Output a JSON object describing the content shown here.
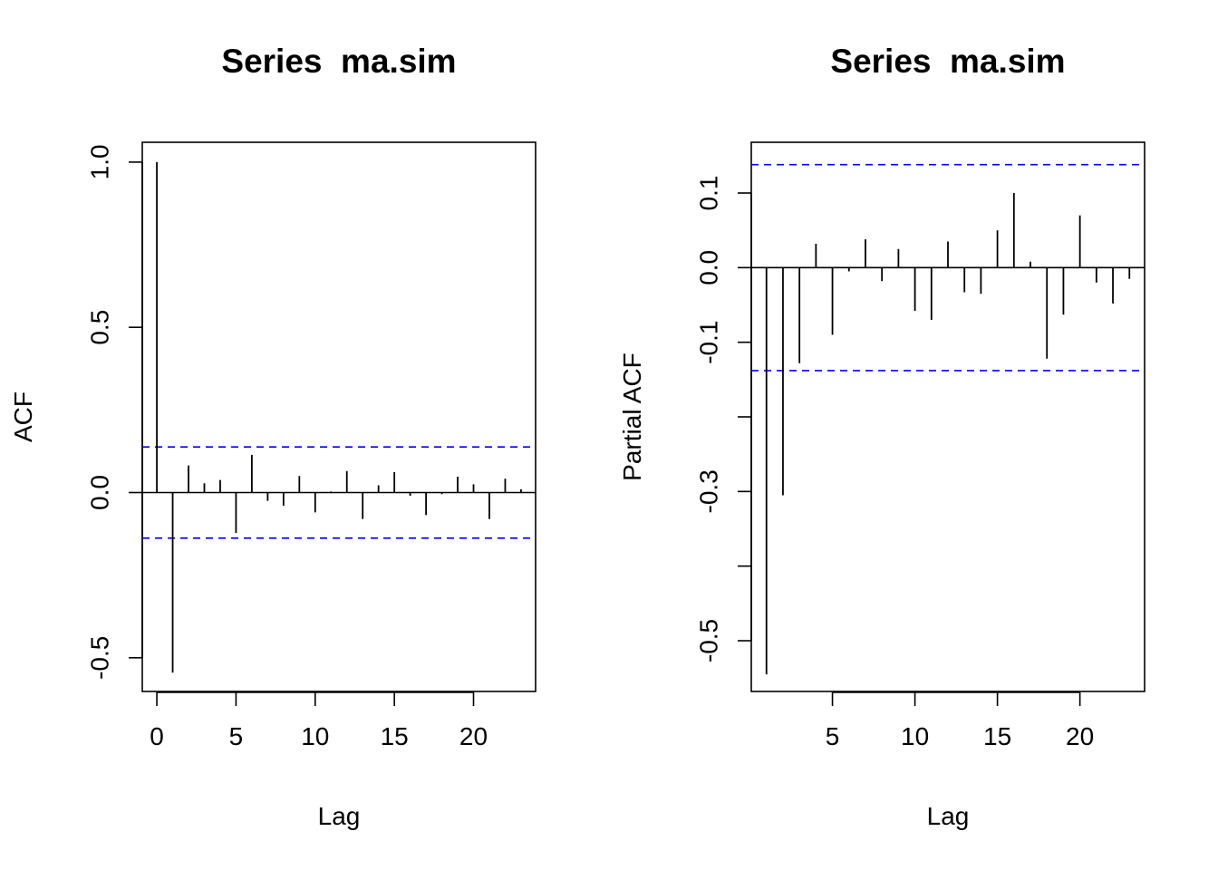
{
  "chart_data": [
    {
      "type": "bar",
      "title": "Series  ma.sim",
      "xlabel": "Lag",
      "ylabel": "ACF",
      "xlim": [
        -0.92,
        23.92
      ],
      "ylim": [
        -0.602,
        1.06
      ],
      "xticks": [
        0,
        5,
        10,
        15,
        20
      ],
      "xtick_labels": [
        "0",
        "5",
        "10",
        "15",
        "20"
      ],
      "yticks": [
        -0.5,
        0.0,
        0.5,
        1.0
      ],
      "ytick_labels": [
        "-0.5",
        "0.0",
        "0.5",
        "1.0"
      ],
      "confidence_bounds": [
        0.138,
        -0.138
      ],
      "confidence_color": "#0000ff",
      "x": [
        0,
        1,
        2,
        3,
        4,
        5,
        6,
        7,
        8,
        9,
        10,
        11,
        12,
        13,
        14,
        15,
        16,
        17,
        18,
        19,
        20,
        21,
        22,
        23
      ],
      "values": [
        1.0,
        -0.545,
        0.082,
        0.028,
        0.038,
        -0.122,
        0.114,
        -0.025,
        -0.04,
        0.05,
        -0.06,
        0.003,
        0.065,
        -0.08,
        0.022,
        0.062,
        -0.01,
        -0.068,
        -0.005,
        0.048,
        0.025,
        -0.08,
        0.042,
        0.01
      ],
      "grid": false
    },
    {
      "type": "bar",
      "title": "Series  ma.sim",
      "xlabel": "Lag",
      "ylabel": "Partial ACF",
      "xlim": [
        0.08,
        23.92
      ],
      "ylim": [
        -0.568,
        0.168
      ],
      "xticks": [
        5,
        10,
        15,
        20
      ],
      "xtick_labels": [
        "5",
        "10",
        "15",
        "20"
      ],
      "yticks": [
        -0.5,
        -0.4,
        -0.3,
        -0.2,
        -0.1,
        0.0,
        0.1
      ],
      "ytick_labels": [
        "-0.5",
        "",
        "-0.3",
        "",
        "-0.1",
        "0.0",
        "0.1"
      ],
      "confidence_bounds": [
        0.138,
        -0.138
      ],
      "confidence_color": "#0000ff",
      "x": [
        1,
        2,
        3,
        4,
        5,
        6,
        7,
        8,
        9,
        10,
        11,
        12,
        13,
        14,
        15,
        16,
        17,
        18,
        19,
        20,
        21,
        22,
        23
      ],
      "values": [
        -0.545,
        -0.305,
        -0.128,
        0.032,
        -0.09,
        -0.005,
        0.038,
        -0.018,
        0.025,
        -0.058,
        -0.07,
        0.035,
        -0.033,
        -0.035,
        0.05,
        0.1,
        0.008,
        -0.122,
        -0.063,
        0.07,
        -0.02,
        -0.048,
        -0.015
      ],
      "grid": false
    }
  ]
}
